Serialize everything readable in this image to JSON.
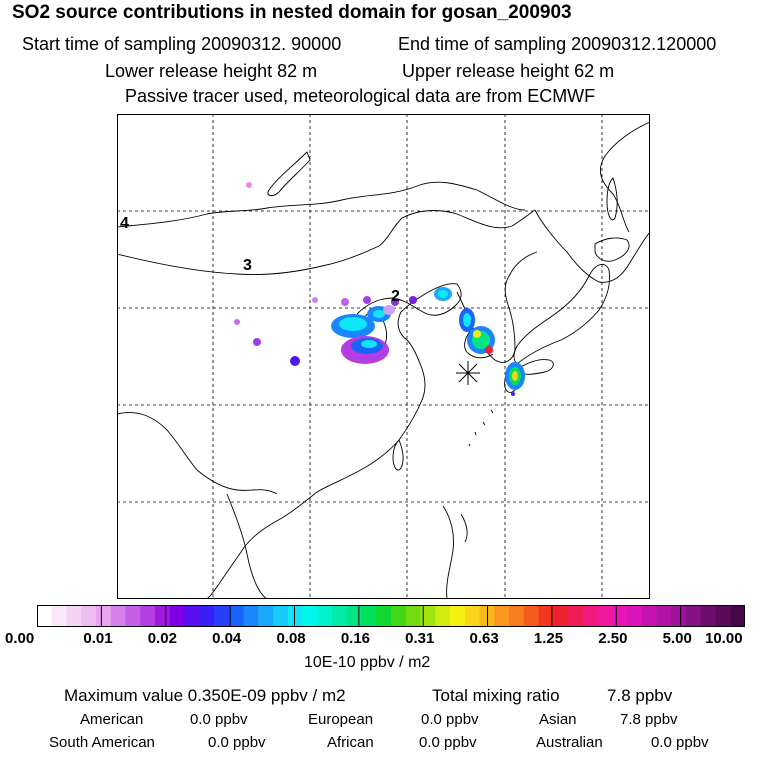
{
  "header": {
    "title": "SO2 source contributions in nested domain for gosan_200903",
    "start_label": "Start time of sampling 20090312. 90000",
    "end_label": "End time of sampling 20090312.120000",
    "lower_label": "Lower release height   82 m",
    "upper_label": "Upper release height   62 m",
    "tracer_label": "Passive tracer used, meteorological data are from ECMWF"
  },
  "map": {
    "region_labels": [
      "4",
      "3",
      "2"
    ],
    "receptor_marker": "asterisk-icon",
    "gridline_style": "dashed"
  },
  "colorbar": {
    "ticks": [
      "0.00",
      "0.01",
      "0.02",
      "0.04",
      "0.08",
      "0.16",
      "0.31",
      "0.63",
      "1.25",
      "2.50",
      "5.00",
      "10.00"
    ],
    "colors": [
      "#ffffff",
      "#fbe8fb",
      "#f4d2f4",
      "#eebdf0",
      "#e8a4ee",
      "#d580ea",
      "#c65fe6",
      "#b43ee4",
      "#9c1ae0",
      "#8000e6",
      "#5a10f0",
      "#3a20f6",
      "#2840f8",
      "#1a62fa",
      "#1a86fb",
      "#1aa8fb",
      "#16cafb",
      "#10e6fa",
      "#00f6ee",
      "#00f2cc",
      "#00eca8",
      "#00e684",
      "#00e05a",
      "#10d830",
      "#40d818",
      "#70dc10",
      "#a0e410",
      "#d0ec10",
      "#f6f010",
      "#fad41a",
      "#f8b81e",
      "#f8981e",
      "#f67c1e",
      "#f45c1e",
      "#f2381e",
      "#f0202e",
      "#f01c58",
      "#f01a7e",
      "#ee18a0",
      "#e816b8",
      "#d814ba",
      "#c414b0",
      "#b014a6",
      "#9c129a",
      "#861086",
      "#6e0c6e",
      "#5a0a58",
      "#460846"
    ],
    "unit": "10E-10 ppbv / m2"
  },
  "summary": {
    "max_label": "Maximum value  0.350E-09 ppbv / m2",
    "total_label": "Total mixing ratio",
    "total_value": "7.8 ppbv",
    "regions": [
      {
        "name": "American",
        "value": "0.0 ppbv"
      },
      {
        "name": "European",
        "value": "0.0 ppbv"
      },
      {
        "name": "Asian",
        "value": "7.8 ppbv"
      },
      {
        "name": "South American",
        "value": "0.0 ppbv"
      },
      {
        "name": "African",
        "value": "0.0 ppbv"
      },
      {
        "name": "Australian",
        "value": "0.0 ppbv"
      }
    ]
  }
}
